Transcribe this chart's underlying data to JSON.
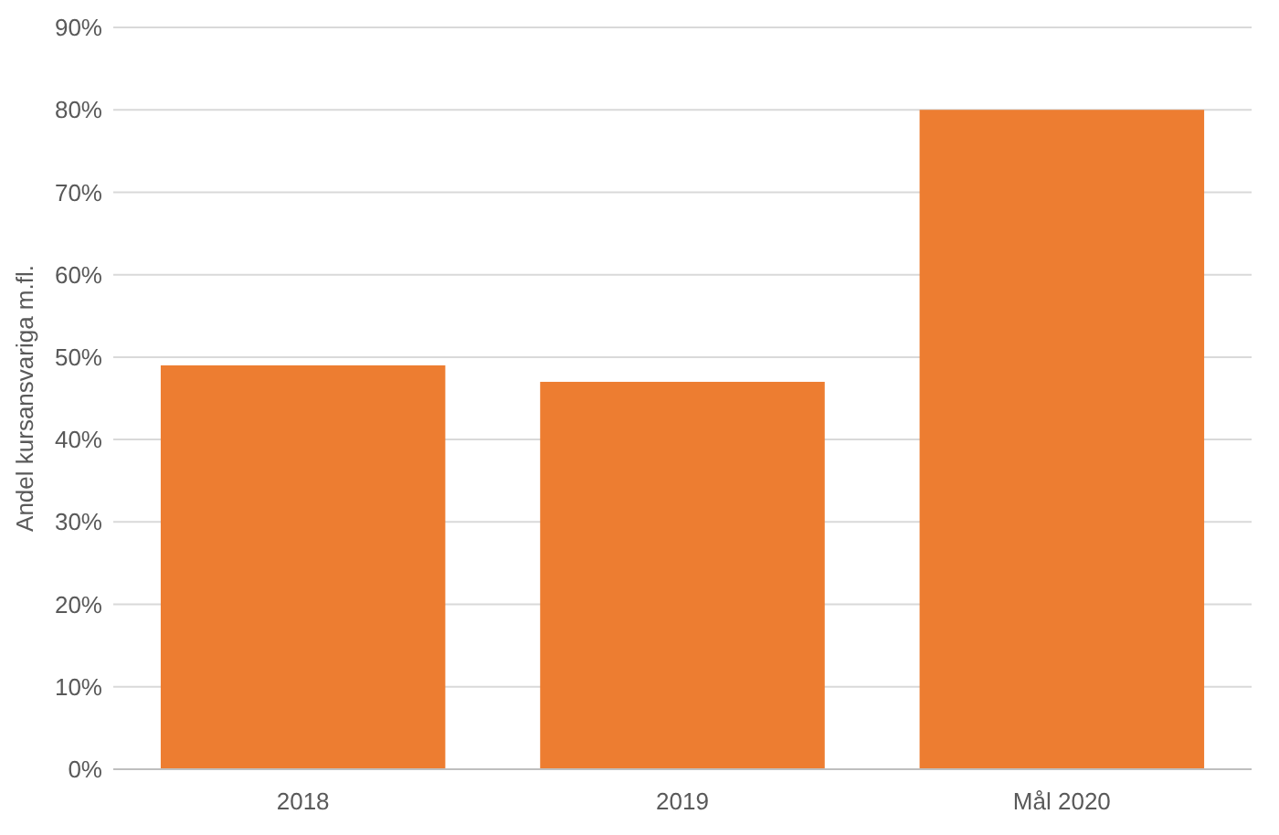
{
  "chart_data": {
    "type": "bar",
    "ylabel": "Andel kursansvariga m.fl.",
    "categories": [
      "2018",
      "2019",
      "Mål 2020"
    ],
    "values": [
      49,
      47,
      80
    ],
    "color": "#ed7d31",
    "ylim": [
      0,
      90
    ],
    "yticks": [
      {
        "value": 0,
        "label": "0%"
      },
      {
        "value": 10,
        "label": "10%"
      },
      {
        "value": 20,
        "label": "20%"
      },
      {
        "value": 30,
        "label": "30%"
      },
      {
        "value": 40,
        "label": "40%"
      },
      {
        "value": 50,
        "label": "50%"
      },
      {
        "value": 60,
        "label": "60%"
      },
      {
        "value": 70,
        "label": "70%"
      },
      {
        "value": 80,
        "label": "80%"
      },
      {
        "value": 90,
        "label": "90%"
      }
    ],
    "grid": "y"
  }
}
